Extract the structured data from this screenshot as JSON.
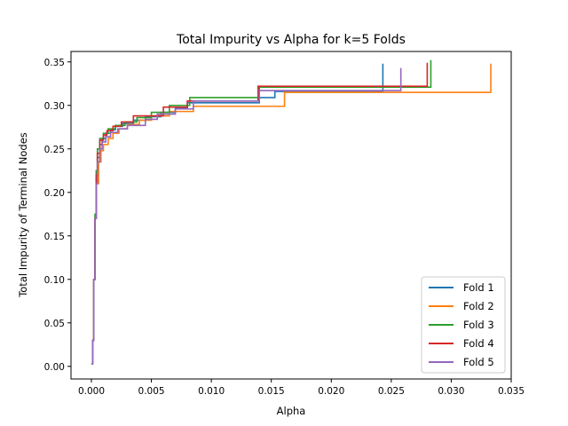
{
  "chart_data": {
    "type": "line",
    "title": "Total Impurity vs Alpha for k=5 Folds",
    "xlabel": "Alpha",
    "ylabel": "Total Impurity of Terminal Nodes",
    "xlim": [
      -0.0017,
      0.035
    ],
    "ylim": [
      -0.0145,
      0.362
    ],
    "xticks": [
      0.0,
      0.005,
      0.01,
      0.015,
      0.02,
      0.025,
      0.03,
      0.035
    ],
    "xtick_labels": [
      "0.000",
      "0.005",
      "0.010",
      "0.015",
      "0.020",
      "0.025",
      "0.030",
      "0.035"
    ],
    "yticks": [
      0.0,
      0.05,
      0.1,
      0.15,
      0.2,
      0.25,
      0.3,
      0.35
    ],
    "ytick_labels": [
      "0.00",
      "0.05",
      "0.10",
      "0.15",
      "0.20",
      "0.25",
      "0.30",
      "0.35"
    ],
    "grid": false,
    "legend_position": "bottom-right",
    "series": [
      {
        "name": "Fold 1",
        "color": "#1f77b4",
        "points": [
          [
            0.0,
            0.003
          ],
          [
            0.0001,
            0.03
          ],
          [
            0.0002,
            0.1
          ],
          [
            0.0003,
            0.17
          ],
          [
            0.0004,
            0.215
          ],
          [
            0.0005,
            0.24
          ],
          [
            0.0007,
            0.255
          ],
          [
            0.0009,
            0.262
          ],
          [
            0.0012,
            0.268
          ],
          [
            0.0016,
            0.272
          ],
          [
            0.002,
            0.276
          ],
          [
            0.0026,
            0.279
          ],
          [
            0.0035,
            0.283
          ],
          [
            0.0045,
            0.287
          ],
          [
            0.0058,
            0.292
          ],
          [
            0.007,
            0.297
          ],
          [
            0.008,
            0.303
          ],
          [
            0.014,
            0.309
          ],
          [
            0.0153,
            0.316
          ],
          [
            0.0243,
            0.322
          ],
          [
            0.0243,
            0.348
          ]
        ]
      },
      {
        "name": "Fold 2",
        "color": "#ff7f0e",
        "points": [
          [
            0.0,
            0.003
          ],
          [
            0.0001,
            0.03
          ],
          [
            0.0002,
            0.1
          ],
          [
            0.0003,
            0.17
          ],
          [
            0.0004,
            0.21
          ],
          [
            0.0006,
            0.235
          ],
          [
            0.0008,
            0.248
          ],
          [
            0.001,
            0.255
          ],
          [
            0.0014,
            0.262
          ],
          [
            0.0018,
            0.268
          ],
          [
            0.0023,
            0.273
          ],
          [
            0.003,
            0.278
          ],
          [
            0.004,
            0.283
          ],
          [
            0.005,
            0.288
          ],
          [
            0.0065,
            0.293
          ],
          [
            0.0085,
            0.299
          ],
          [
            0.0161,
            0.315
          ],
          [
            0.0333,
            0.315
          ],
          [
            0.0333,
            0.348
          ]
        ]
      },
      {
        "name": "Fold 3",
        "color": "#2ca02c",
        "points": [
          [
            0.0,
            0.003
          ],
          [
            0.0001,
            0.03
          ],
          [
            0.0002,
            0.1
          ],
          [
            0.0003,
            0.175
          ],
          [
            0.0004,
            0.225
          ],
          [
            0.0005,
            0.25
          ],
          [
            0.0007,
            0.262
          ],
          [
            0.001,
            0.268
          ],
          [
            0.0014,
            0.273
          ],
          [
            0.002,
            0.277
          ],
          [
            0.0028,
            0.281
          ],
          [
            0.0038,
            0.286
          ],
          [
            0.005,
            0.292
          ],
          [
            0.0065,
            0.3
          ],
          [
            0.0082,
            0.309
          ],
          [
            0.014,
            0.321
          ],
          [
            0.0283,
            0.322
          ],
          [
            0.0283,
            0.352
          ]
        ]
      },
      {
        "name": "Fold 4",
        "color": "#d62728",
        "points": [
          [
            0.0,
            0.003
          ],
          [
            0.0001,
            0.03
          ],
          [
            0.0002,
            0.1
          ],
          [
            0.0003,
            0.17
          ],
          [
            0.0004,
            0.22
          ],
          [
            0.0005,
            0.245
          ],
          [
            0.0007,
            0.26
          ],
          [
            0.001,
            0.266
          ],
          [
            0.0013,
            0.271
          ],
          [
            0.0018,
            0.276
          ],
          [
            0.0025,
            0.281
          ],
          [
            0.0035,
            0.288
          ],
          [
            0.006,
            0.298
          ],
          [
            0.008,
            0.305
          ],
          [
            0.0139,
            0.322
          ],
          [
            0.028,
            0.322
          ],
          [
            0.028,
            0.349
          ]
        ]
      },
      {
        "name": "Fold 5",
        "color": "#9467bd",
        "points": [
          [
            0.0,
            0.003
          ],
          [
            0.0001,
            0.03
          ],
          [
            0.0002,
            0.1
          ],
          [
            0.0003,
            0.17
          ],
          [
            0.0004,
            0.21
          ],
          [
            0.0005,
            0.235
          ],
          [
            0.0007,
            0.25
          ],
          [
            0.0009,
            0.258
          ],
          [
            0.0012,
            0.264
          ],
          [
            0.0016,
            0.269
          ],
          [
            0.0022,
            0.273
          ],
          [
            0.003,
            0.277
          ],
          [
            0.0045,
            0.284
          ],
          [
            0.0055,
            0.29
          ],
          [
            0.007,
            0.296
          ],
          [
            0.0085,
            0.305
          ],
          [
            0.014,
            0.317
          ],
          [
            0.0258,
            0.317
          ],
          [
            0.0258,
            0.343
          ]
        ]
      }
    ]
  }
}
